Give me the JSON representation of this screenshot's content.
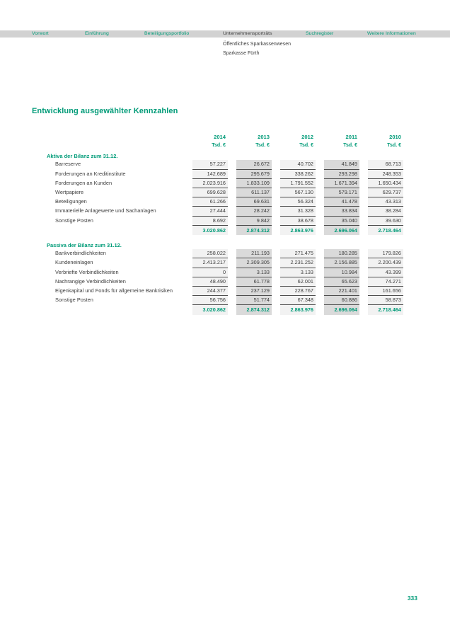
{
  "nav": {
    "items": [
      {
        "label": "Vorwort",
        "active": false
      },
      {
        "label": "Einführung",
        "active": false
      },
      {
        "label": "Beteiligungsportfolio",
        "active": false
      },
      {
        "label": "Unternehmensporträts",
        "active": true
      },
      {
        "label": "Suchregister",
        "active": false
      },
      {
        "label": "Weitere Informationen",
        "active": false
      }
    ]
  },
  "breadcrumb": {
    "line1": "Öffentliches Sparkassenwesen",
    "line2": "Sparkasse Fürth"
  },
  "page": {
    "title": "Entwicklung ausgewählter Kennzahlen",
    "page_number": "333"
  },
  "table": {
    "years": [
      "2014",
      "2013",
      "2012",
      "2011",
      "2010"
    ],
    "unit": "Tsd. €",
    "sections": [
      {
        "heading": "Aktiva der Bilanz zum 31.12.",
        "rows": [
          {
            "label": "Barreserve",
            "values": [
              "57.227",
              "26.672",
              "40.702",
              "41.849",
              "68.713"
            ]
          },
          {
            "label": "Forderungen an Kreditinstitute",
            "values": [
              "142.689",
              "295.679",
              "338.262",
              "293.298",
              "248.353"
            ]
          },
          {
            "label": "Forderungen an Kunden",
            "values": [
              "2.023.916",
              "1.833.109",
              "1.791.552",
              "1.671.394",
              "1.650.434"
            ]
          },
          {
            "label": "Wertpapiere",
            "values": [
              "699.628",
              "611.137",
              "567.130",
              "579.171",
              "629.737"
            ]
          },
          {
            "label": "Beteiligungen",
            "values": [
              "61.266",
              "69.631",
              "56.324",
              "41.478",
              "43.313"
            ]
          },
          {
            "label": "Immaterielle Anlagewerte und Sachanlagen",
            "values": [
              "27.444",
              "28.242",
              "31.328",
              "33.834",
              "38.284"
            ]
          },
          {
            "label": "Sonstige Posten",
            "values": [
              "8.692",
              "9.842",
              "38.678",
              "35.040",
              "39.630"
            ]
          }
        ],
        "total": [
          "3.020.862",
          "2.874.312",
          "2.863.976",
          "2.696.064",
          "2.718.464"
        ]
      },
      {
        "heading": "Passiva der Bilanz zum 31.12.",
        "rows": [
          {
            "label": "Bankverbindlichkeiten",
            "values": [
              "258.022",
              "211.193",
              "271.475",
              "180.285",
              "179.826"
            ]
          },
          {
            "label": "Kundeneinlagen",
            "values": [
              "2.413.217",
              "2.309.305",
              "2.231.252",
              "2.156.885",
              "2.200.439"
            ]
          },
          {
            "label": "Verbriefte Verbindlichkeiten",
            "values": [
              "0",
              "3.133",
              "3.133",
              "10.984",
              "43.399"
            ]
          },
          {
            "label": "Nachrangige Verbindlichkeiten",
            "values": [
              "48.490",
              "61.778",
              "62.001",
              "65.623",
              "74.271"
            ]
          },
          {
            "label": "Eigenkapital und Fonds für allgemeine Bankrisiken",
            "values": [
              "244.377",
              "237.129",
              "228.767",
              "221.401",
              "161.656"
            ]
          },
          {
            "label": "Sonstige Posten",
            "values": [
              "56.756",
              "51.774",
              "67.348",
              "60.886",
              "58.873"
            ]
          }
        ],
        "total": [
          "3.020.862",
          "2.874.312",
          "2.863.976",
          "2.696.064",
          "2.718.464"
        ]
      }
    ]
  },
  "colors": {
    "accent_green": "#009b78",
    "text_dark": "#3d3d3d",
    "nav_bar_gray": "#d2d2d2",
    "column_light": "#f2f2f2",
    "column_dark": "#dadada",
    "cell_underline": "#4f4f4f"
  }
}
